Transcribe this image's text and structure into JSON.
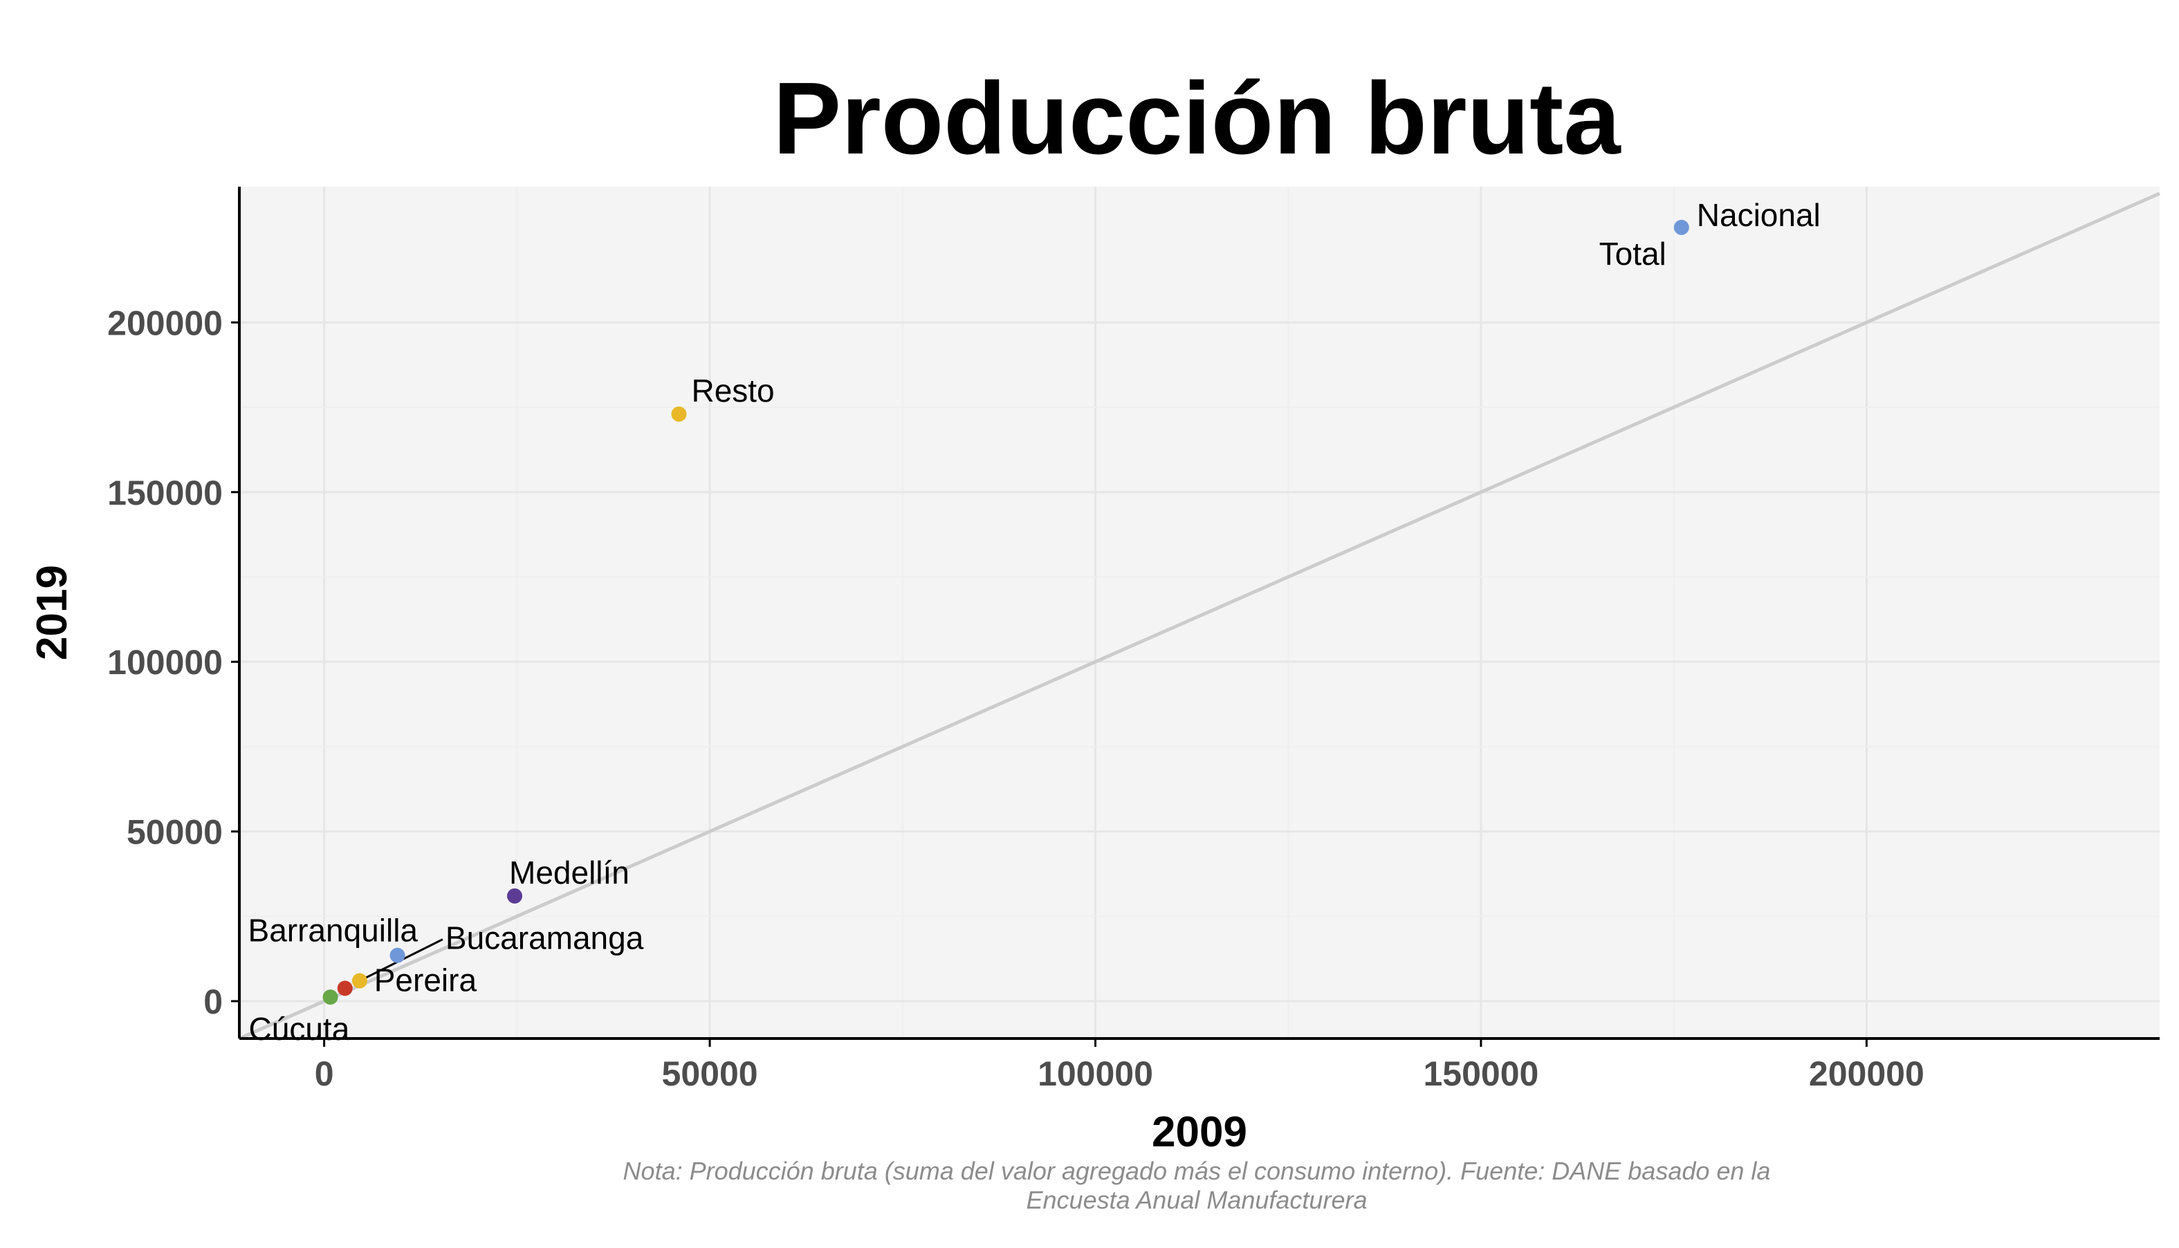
{
  "chart_data": {
    "type": "scatter",
    "title": "Producción bruta",
    "xlabel": "2009",
    "ylabel": "2019",
    "xlim": [
      -11000,
      238000
    ],
    "ylim": [
      -11000,
      240000
    ],
    "xticks": [
      0,
      50000,
      100000,
      150000,
      200000
    ],
    "yticks": [
      0,
      50000,
      100000,
      150000,
      200000
    ],
    "x_tick_labels": [
      "0",
      "50000",
      "100000",
      "150000",
      "200000"
    ],
    "y_tick_labels": [
      "0",
      "50000",
      "100000",
      "150000",
      "200000"
    ],
    "grid": true,
    "reference_line": {
      "type": "identity",
      "color": "#cccccc"
    },
    "points": [
      {
        "label": "Nacional",
        "x": 176000,
        "y": 228000,
        "color": "#7098d8"
      },
      {
        "label": "Total",
        "x": 176000,
        "y": 228000,
        "color": "#7098d8"
      },
      {
        "label": "Resto",
        "x": 46000,
        "y": 173000,
        "color": "#e8b828"
      },
      {
        "label": "Medellín",
        "x": 24700,
        "y": 31000,
        "color": "#5c3c94"
      },
      {
        "label": "Barranquilla",
        "x": 9500,
        "y": 13500,
        "color": "#7098d8"
      },
      {
        "label": "Bucaramanga",
        "x": 4600,
        "y": 6000,
        "color": "#e8b828"
      },
      {
        "label": "Pereira",
        "x": 2700,
        "y": 3800,
        "color": "#c83a28"
      },
      {
        "label": "Cúcuta",
        "x": 800,
        "y": 1200,
        "color": "#68a848"
      }
    ],
    "note_lines": [
      "Nota: Producción bruta (suma del valor agregado más el consumo interno). Fuente: DANE basado en la",
      "Encuesta Anual Manufacturera"
    ],
    "colors": {
      "panel_background": "#f4f4f4",
      "gridline": "#e6e6e6",
      "axis_line": "#000000",
      "tick_label": "#4d4d4d",
      "note_text": "#8c8c8c"
    }
  }
}
